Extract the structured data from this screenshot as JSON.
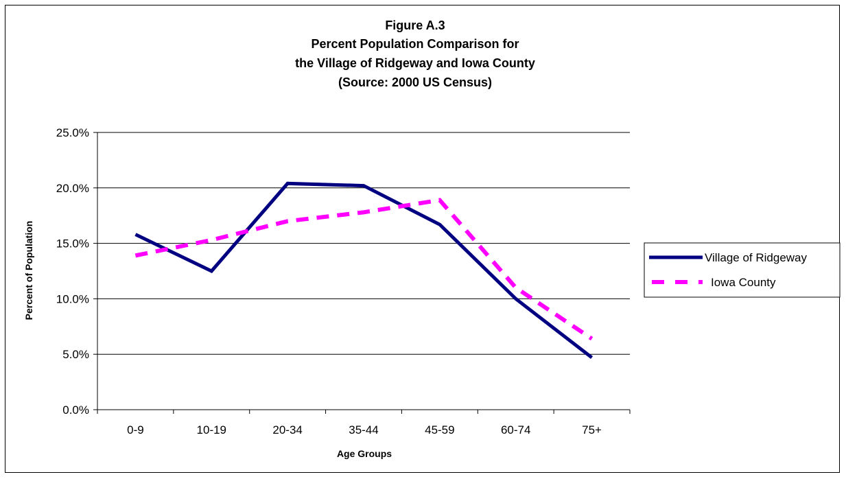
{
  "chart_data": {
    "type": "line",
    "title_lines": [
      "Figure A.3",
      "Percent Population Comparison for",
      "the Village of Ridgeway and Iowa County",
      "(Source:  2000 US Census)"
    ],
    "xlabel": "Age Groups",
    "ylabel": "Percent of Population",
    "categories": [
      "0-9",
      "10-19",
      "20-34",
      "35-44",
      "45-59",
      "60-74",
      "75+"
    ],
    "ylim": [
      0,
      25
    ],
    "yticks": [
      0,
      5,
      10,
      15,
      20,
      25
    ],
    "ytick_labels": [
      "0.0%",
      "5.0%",
      "10.0%",
      "15.0%",
      "20.0%",
      "25.0%"
    ],
    "grid": true,
    "legend_position": "right",
    "series": [
      {
        "name": "Village of Ridgeway",
        "values": [
          15.8,
          12.5,
          20.4,
          20.2,
          16.7,
          10.0,
          4.7
        ],
        "color": "#000080",
        "style": "solid"
      },
      {
        "name": "Iowa County",
        "values": [
          13.9,
          15.3,
          17.0,
          17.8,
          18.9,
          11.0,
          6.4
        ],
        "color": "#FF00FF",
        "style": "dashed"
      }
    ]
  }
}
